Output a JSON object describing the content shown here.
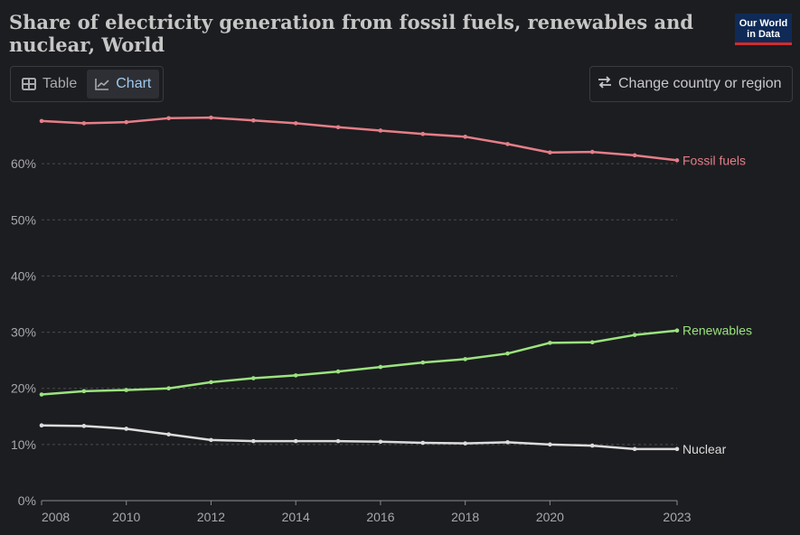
{
  "title": "Share of electricity generation from fossil fuels, renewables and nuclear, World",
  "logo": {
    "line1": "Our World",
    "line2": "in Data"
  },
  "tabs": [
    {
      "label": "Table",
      "icon": "table-icon",
      "active": false
    },
    {
      "label": "Chart",
      "icon": "line-chart-icon",
      "active": true
    }
  ],
  "change_region": {
    "label": "Change country or region",
    "icon": "swap-arrows-icon"
  },
  "colors": {
    "fossil": "#e57e89",
    "renewables": "#9be37f",
    "nuclear": "#dcdcdc",
    "accent": "#9fc9ef",
    "brand_bg": "#0f2a56",
    "brand_red": "#d42b2b"
  },
  "chart_data": {
    "type": "line",
    "x": [
      2008,
      2009,
      2010,
      2011,
      2012,
      2013,
      2014,
      2015,
      2016,
      2017,
      2018,
      2019,
      2020,
      2021,
      2022,
      2023
    ],
    "series": [
      {
        "name": "Fossil fuels",
        "color_key": "fossil",
        "values": [
          67.6,
          67.2,
          67.4,
          68.1,
          68.2,
          67.7,
          67.2,
          66.5,
          65.9,
          65.3,
          64.8,
          63.5,
          62.0,
          62.1,
          61.5,
          60.6
        ]
      },
      {
        "name": "Renewables",
        "color_key": "renewables",
        "values": [
          18.9,
          19.5,
          19.7,
          20.0,
          21.1,
          21.8,
          22.3,
          23.0,
          23.8,
          24.6,
          25.2,
          26.2,
          28.1,
          28.2,
          29.5,
          30.3
        ]
      },
      {
        "name": "Nuclear",
        "color_key": "nuclear",
        "values": [
          13.4,
          13.3,
          12.8,
          11.8,
          10.8,
          10.6,
          10.6,
          10.6,
          10.5,
          10.3,
          10.2,
          10.4,
          10.0,
          9.8,
          9.2,
          9.2
        ]
      }
    ],
    "x_ticks": [
      "2008",
      "2010",
      "2012",
      "2014",
      "2016",
      "2018",
      "2020",
      "2023"
    ],
    "y_ticks": [
      "0%",
      "10%",
      "20%",
      "30%",
      "40%",
      "50%",
      "60%"
    ],
    "ylim": [
      0,
      70
    ],
    "xlim": [
      2008,
      2023
    ],
    "grid": "horizontal dashed",
    "legend": "right-inline"
  }
}
